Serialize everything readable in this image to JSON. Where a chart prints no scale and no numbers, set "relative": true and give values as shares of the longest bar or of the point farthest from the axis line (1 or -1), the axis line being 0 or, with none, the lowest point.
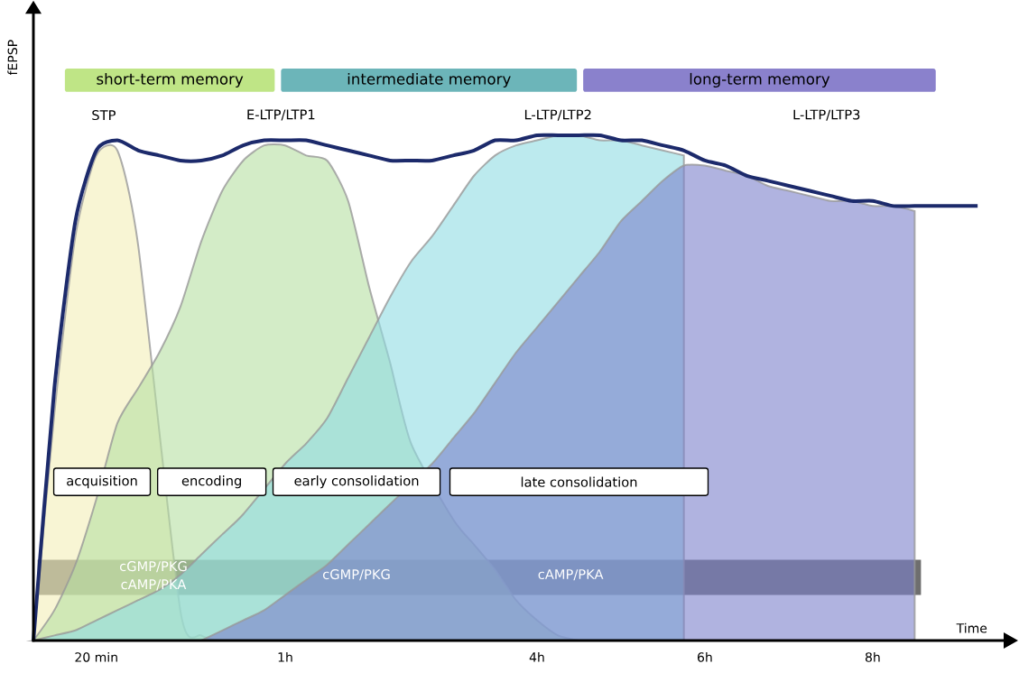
{
  "chart_data": {
    "type": "area",
    "relative": true,
    "xlabel": "Time",
    "ylabel": "fEPSP",
    "categories": [
      null,
      null,
      null,
      "20 min",
      null,
      null,
      null,
      null,
      null,
      null,
      null,
      null,
      "1h",
      null,
      null,
      null,
      null,
      null,
      null,
      null,
      null,
      null,
      null,
      null,
      "4h",
      null,
      null,
      null,
      null,
      null,
      null,
      null,
      "6h",
      null,
      null,
      null,
      null,
      null,
      null,
      null,
      "8h",
      null,
      null,
      null,
      null,
      null
    ],
    "marker": "none",
    "series": [
      {
        "color": "#f3efb8",
        "values": [
          0,
          0.45,
          0.8,
          0.96,
          0.97,
          0.78,
          null,
          0.06,
          0.01,
          0,
          null,
          null,
          null,
          null,
          null,
          null,
          null,
          null,
          null,
          null,
          null,
          null,
          null,
          null,
          null,
          null,
          null,
          null,
          null,
          null,
          null,
          null,
          null,
          null,
          null,
          null,
          null,
          null,
          null,
          null,
          null,
          null,
          null,
          null,
          null,
          null
        ]
      },
      {
        "color": "#b6e0a2",
        "values": [
          0,
          0.06,
          0.15,
          0.28,
          0.43,
          0.5,
          0.57,
          0.66,
          0.79,
          0.89,
          0.95,
          0.98,
          0.98,
          0.96,
          0.95,
          0.87,
          0.7,
          0.55,
          0.39,
          null,
          0.24,
          0.19,
          0.14,
          0.08,
          0.04,
          0.01,
          0,
          null,
          null,
          null,
          null,
          null,
          null,
          null,
          null,
          null,
          null,
          null,
          null,
          null,
          null,
          null,
          null,
          null,
          null,
          null
        ]
      },
      {
        "color": "#8fdce2",
        "values": [
          0,
          0.01,
          0.02,
          0.04,
          0.06,
          0.08,
          0.1,
          0.13,
          0.17,
          0.21,
          0.25,
          null,
          0.35,
          0.39,
          0.44,
          0.52,
          0.6,
          0.68,
          0.75,
          0.8,
          0.86,
          0.92,
          0.96,
          0.98,
          0.99,
          1.0,
          1.0,
          0.99,
          0.99,
          0.98,
          0.97,
          0.96,
          null,
          null,
          null,
          null,
          null,
          null,
          null,
          null,
          null,
          null,
          null,
          null,
          null,
          null
        ]
      },
      {
        "color": "#7b80cc",
        "values": [
          null,
          null,
          null,
          null,
          null,
          null,
          null,
          null,
          0,
          0.02,
          0.04,
          0.06,
          0.09,
          0.12,
          0.15,
          0.19,
          0.23,
          0.27,
          null,
          0.35,
          0.4,
          0.45,
          0.51,
          0.57,
          0.62,
          0.67,
          0.72,
          0.77,
          0.83,
          0.87,
          0.91,
          0.94,
          0.94,
          0.93,
          0.92,
          0.9,
          0.89,
          0.88,
          0.87,
          0.87,
          0.86,
          0.86,
          0.85,
          null,
          null,
          null
        ]
      },
      {
        "type": "line",
        "color": "#1c2a6b",
        "values": [
          0,
          0.5,
          0.83,
          0.97,
          0.99,
          0.97,
          0.96,
          0.95,
          0.95,
          0.96,
          0.98,
          0.99,
          0.99,
          0.99,
          0.98,
          0.97,
          0.96,
          0.95,
          0.95,
          0.95,
          0.96,
          0.97,
          0.99,
          0.99,
          1.0,
          1.0,
          1.0,
          1.0,
          0.99,
          0.99,
          0.98,
          0.97,
          0.95,
          0.94,
          0.92,
          0.91,
          0.9,
          0.89,
          0.88,
          0.87,
          0.87,
          0.86,
          0.86,
          0.86,
          0.86,
          0.86
        ]
      }
    ],
    "bands": [
      {
        "axis": "y",
        "from": 0.09,
        "to": 0.16,
        "color": "#6e6e6e"
      }
    ],
    "annotations": [
      "short-term memory",
      "intermediate memory",
      "long-term memory",
      "STP",
      "E-LTP/LTP1",
      "L-LTP/LTP2",
      "L-LTP/LTP3",
      "acquisition",
      "encoding",
      "early consolidation",
      "late consolidation",
      "cGMP/PKG",
      "cAMP/PKA",
      "cGMP/PKG",
      "cAMP/PKA"
    ]
  }
}
